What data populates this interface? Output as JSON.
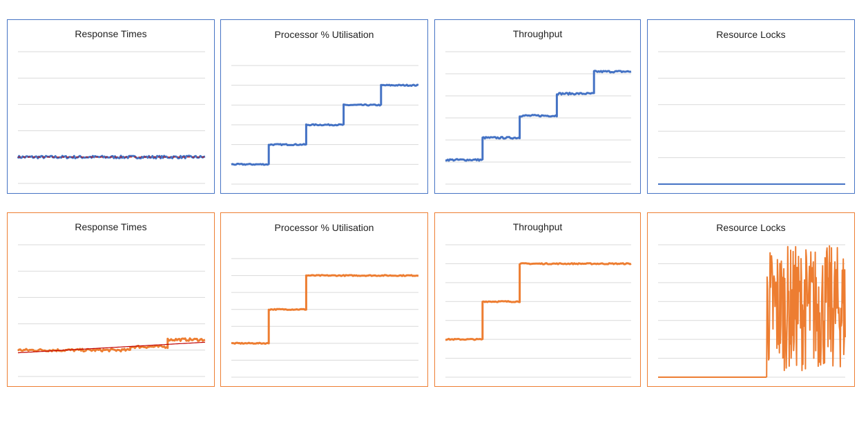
{
  "colors": {
    "blue": "#4472c4",
    "orange": "#ed7d31",
    "trend": "#c00000",
    "grid": "#d9d9d9"
  },
  "chart_data": [
    {
      "id": "top-response",
      "type": "line",
      "title": "Response Times",
      "border": "blue",
      "ylim": [
        0,
        5
      ],
      "gridlines": 6,
      "series": [
        {
          "color": "blue",
          "width": 3,
          "noise": 0.05,
          "segments": [
            {
              "x": [
                0,
                1
              ],
              "y": [
                1.0,
                1.0
              ]
            }
          ]
        },
        {
          "color": "trend",
          "width": 1.2,
          "dash": true,
          "segments": [
            {
              "x": [
                0,
                1
              ],
              "y": [
                1.0,
                1.0
              ]
            }
          ]
        }
      ]
    },
    {
      "id": "top-processor",
      "type": "line",
      "title": "Processor % Utilisation",
      "border": "blue",
      "ylim": [
        0,
        6
      ],
      "gridlines": 7,
      "series": [
        {
          "color": "blue",
          "width": 3,
          "noise": 0.03,
          "segments": [
            {
              "x": [
                0,
                0.2
              ],
              "y": [
                1,
                1
              ]
            },
            {
              "x": [
                0.2,
                0.4
              ],
              "y": [
                2,
                2
              ]
            },
            {
              "x": [
                0.4,
                0.6
              ],
              "y": [
                3,
                3
              ]
            },
            {
              "x": [
                0.6,
                0.8
              ],
              "y": [
                4,
                4
              ]
            },
            {
              "x": [
                0.8,
                1.0
              ],
              "y": [
                5,
                5
              ]
            }
          ]
        }
      ]
    },
    {
      "id": "top-throughput",
      "type": "line",
      "title": "Throughput",
      "border": "blue",
      "ylim": [
        0,
        6
      ],
      "gridlines": 7,
      "series": [
        {
          "color": "blue",
          "width": 3,
          "noise": 0.04,
          "segments": [
            {
              "x": [
                0,
                0.2
              ],
              "y": [
                1.1,
                1.1
              ]
            },
            {
              "x": [
                0.2,
                0.4
              ],
              "y": [
                2.1,
                2.1
              ]
            },
            {
              "x": [
                0.4,
                0.6
              ],
              "y": [
                3.1,
                3.1
              ]
            },
            {
              "x": [
                0.6,
                0.8
              ],
              "y": [
                4.1,
                4.1
              ]
            },
            {
              "x": [
                0.8,
                1.0
              ],
              "y": [
                5.1,
                5.1
              ]
            }
          ]
        }
      ]
    },
    {
      "id": "top-locks",
      "type": "line",
      "title": "Resource Locks",
      "border": "blue",
      "ylim": [
        0,
        5
      ],
      "gridlines": 6,
      "series": [
        {
          "color": "blue",
          "width": 2,
          "noise": 0,
          "segments": [
            {
              "x": [
                0,
                1
              ],
              "y": [
                0,
                0
              ]
            }
          ]
        }
      ]
    },
    {
      "id": "bottom-response",
      "type": "line",
      "title": "Response Times",
      "border": "orange",
      "ylim": [
        0,
        5
      ],
      "gridlines": 6,
      "series": [
        {
          "color": "orange",
          "width": 3,
          "noise": 0.05,
          "segments": [
            {
              "x": [
                0,
                0.6
              ],
              "y": [
                1.0,
                1.0
              ]
            },
            {
              "x": [
                0.6,
                0.8
              ],
              "y": [
                1.13,
                1.13
              ]
            },
            {
              "x": [
                0.8,
                1.0
              ],
              "y": [
                1.4,
                1.4
              ]
            }
          ]
        },
        {
          "color": "trend",
          "width": 1.2,
          "dash": false,
          "segments": [
            {
              "x": [
                0,
                1
              ],
              "y": [
                0.9,
                1.3
              ]
            }
          ]
        }
      ]
    },
    {
      "id": "bottom-processor",
      "type": "line",
      "title": "Processor % Utilisation",
      "border": "orange",
      "ylim": [
        0,
        7
      ],
      "gridlines": 8,
      "series": [
        {
          "color": "orange",
          "width": 3,
          "noise": 0.03,
          "segments": [
            {
              "x": [
                0,
                0.2
              ],
              "y": [
                2,
                2
              ]
            },
            {
              "x": [
                0.2,
                0.4
              ],
              "y": [
                4,
                4
              ]
            },
            {
              "x": [
                0.4,
                1.0
              ],
              "y": [
                6,
                6
              ]
            }
          ]
        }
      ]
    },
    {
      "id": "bottom-throughput",
      "type": "line",
      "title": "Throughput",
      "border": "orange",
      "ylim": [
        0,
        7
      ],
      "gridlines": 8,
      "series": [
        {
          "color": "orange",
          "width": 3,
          "noise": 0.03,
          "segments": [
            {
              "x": [
                0,
                0.2
              ],
              "y": [
                2,
                2
              ]
            },
            {
              "x": [
                0.2,
                0.4
              ],
              "y": [
                4,
                4
              ]
            },
            {
              "x": [
                0.4,
                1.0
              ],
              "y": [
                6,
                6
              ]
            }
          ]
        }
      ]
    },
    {
      "id": "bottom-locks",
      "type": "line",
      "title": "Resource Locks",
      "border": "orange",
      "ylim": [
        0,
        7
      ],
      "gridlines": 8,
      "series": [
        {
          "color": "orange",
          "width": 2,
          "noise": 0,
          "segments": [
            {
              "x": [
                0,
                0.58
              ],
              "y": [
                0,
                0
              ]
            }
          ]
        },
        {
          "color": "orange",
          "width": 2,
          "oscillate": true,
          "range": [
            0,
            7
          ],
          "xrange": [
            0.58,
            1.0
          ],
          "count": 160
        }
      ]
    }
  ]
}
